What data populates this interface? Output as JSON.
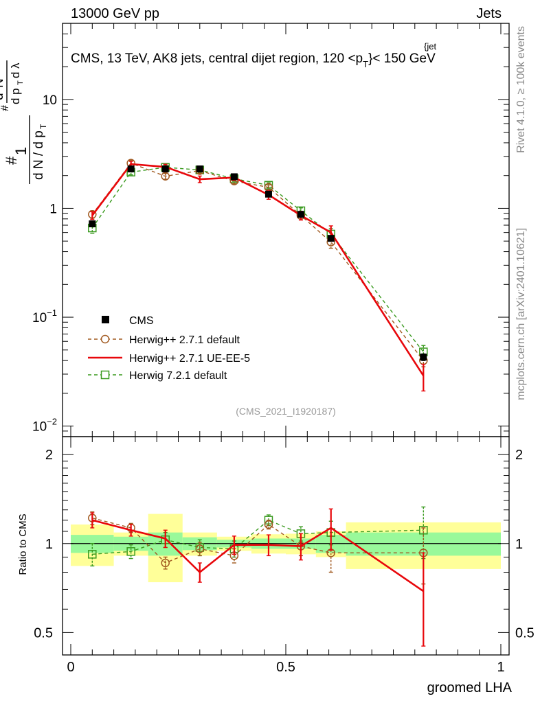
{
  "header": {
    "left": "13000 GeV pp",
    "right": "Jets"
  },
  "side_labels": {
    "rivet": "Rivet 4.1.0, ≥ 100k events",
    "mcplots": "mcplots.cern.ch [arXiv:2401.10621]"
  },
  "chart_data": {
    "type": "scatter",
    "title": "CMS, 13 TeV, AK8 jets, central dijet region, 120 <p_T^{jet}< 150 GeV",
    "title_parts": {
      "main": "CMS, 13 TeV, AK8 jets, central dijet region, 120 <p",
      "sup": "{jet",
      "sub": "T",
      "tail": "}< 150 GeV"
    },
    "analysis_id": "(CMS_2021_I1920187)",
    "xlabel": "groomed LHA",
    "ylabel": "1 / dN/dpT · d²N / dpT dλ",
    "xlim": [
      0,
      1
    ],
    "top_panel": {
      "yscale": "log",
      "ylim": [
        0.008,
        50
      ],
      "ticks": [
        {
          "value": 0.01,
          "base": "10",
          "exp": "−2"
        },
        {
          "value": 0.1,
          "base": "10",
          "exp": "−1"
        },
        {
          "value": 1,
          "base": "1",
          "exp": ""
        },
        {
          "value": 10,
          "base": "10",
          "exp": ""
        }
      ]
    },
    "ratio_panel": {
      "ylabel": "Ratio to CMS",
      "ylim": [
        0.42,
        2.3
      ],
      "ticks": [
        {
          "value": 0.5,
          "label": "0.5"
        },
        {
          "value": 1,
          "label": "1"
        },
        {
          "value": 2,
          "label": "2"
        }
      ]
    },
    "x_ticks": [
      {
        "value": 0,
        "label": "0"
      },
      {
        "value": 0.5,
        "label": "0.5"
      },
      {
        "value": 1,
        "label": "1"
      }
    ],
    "bins": [
      {
        "lo": 0.0,
        "hi": 0.1,
        "x": 0.05
      },
      {
        "lo": 0.1,
        "hi": 0.18,
        "x": 0.14
      },
      {
        "lo": 0.18,
        "hi": 0.26,
        "x": 0.22
      },
      {
        "lo": 0.26,
        "hi": 0.34,
        "x": 0.3
      },
      {
        "lo": 0.34,
        "hi": 0.42,
        "x": 0.38
      },
      {
        "lo": 0.42,
        "hi": 0.5,
        "x": 0.46
      },
      {
        "lo": 0.5,
        "hi": 0.57,
        "x": 0.535
      },
      {
        "lo": 0.57,
        "hi": 0.64,
        "x": 0.605
      },
      {
        "lo": 0.64,
        "hi": 1.0,
        "x": 0.82
      }
    ],
    "data_band": {
      "green": [
        0.07,
        0.055,
        0.09,
        0.05,
        0.03,
        0.04,
        0.04,
        0.07,
        0.09
      ],
      "yellow": [
        0.16,
        0.09,
        0.26,
        0.09,
        0.055,
        0.075,
        0.08,
        0.1,
        0.18
      ]
    },
    "series": [
      {
        "name": "CMS",
        "style": "data",
        "color": "#000000",
        "values": [
          0.72,
          2.3,
          2.3,
          2.3,
          1.95,
          1.35,
          0.88,
          0.53,
          0.043
        ],
        "errors": [
          0.04,
          0.1,
          0.1,
          0.08,
          0.07,
          0.06,
          0.04,
          0.03,
          0.003
        ]
      },
      {
        "name": "Herwig++ 2.7.1 default",
        "style": "circle-dashed",
        "color": "#a0581e",
        "values": [
          0.88,
          2.6,
          1.97,
          2.22,
          1.78,
          1.56,
          0.86,
          0.49,
          0.04
        ],
        "errors": [
          0.07,
          0.15,
          0.12,
          0.12,
          0.1,
          0.08,
          0.06,
          0.06,
          0.005
        ],
        "ratio": [
          1.22,
          1.13,
          0.86,
          0.96,
          0.91,
          1.16,
          0.98,
          0.93,
          0.93
        ],
        "ratio_errors": [
          0.06,
          0.04,
          0.04,
          0.05,
          0.05,
          0.04,
          0.07,
          0.13,
          0.2
        ]
      },
      {
        "name": "Herwig++ 2.7.1 UE-EE-5",
        "style": "line-solid",
        "color": "#e8070b",
        "values": [
          0.86,
          2.55,
          2.4,
          1.85,
          1.92,
          1.33,
          0.86,
          0.6,
          0.029
        ],
        "errors": [
          0.07,
          0.15,
          0.14,
          0.13,
          0.12,
          0.12,
          0.08,
          0.09,
          0.008
        ],
        "ratio": [
          1.2,
          1.11,
          1.04,
          0.8,
          0.99,
          0.99,
          0.98,
          1.13,
          0.69
        ],
        "ratio_errors": [
          0.07,
          0.05,
          0.07,
          0.06,
          0.07,
          0.08,
          0.1,
          0.18,
          0.24
        ]
      },
      {
        "name": "Herwig 7.2.1 default",
        "style": "square-dashed",
        "color": "#3a9a1f",
        "values": [
          0.66,
          2.15,
          2.38,
          2.25,
          1.87,
          1.63,
          0.95,
          0.58,
          0.048
        ],
        "errors": [
          0.07,
          0.12,
          0.12,
          0.12,
          0.1,
          0.09,
          0.06,
          0.07,
          0.007
        ],
        "ratio": [
          0.92,
          0.94,
          1.03,
          0.97,
          0.96,
          1.2,
          1.08,
          1.09,
          1.11
        ],
        "ratio_errors": [
          0.08,
          0.05,
          0.06,
          0.06,
          0.06,
          0.05,
          0.06,
          0.1,
          0.22
        ]
      }
    ]
  }
}
